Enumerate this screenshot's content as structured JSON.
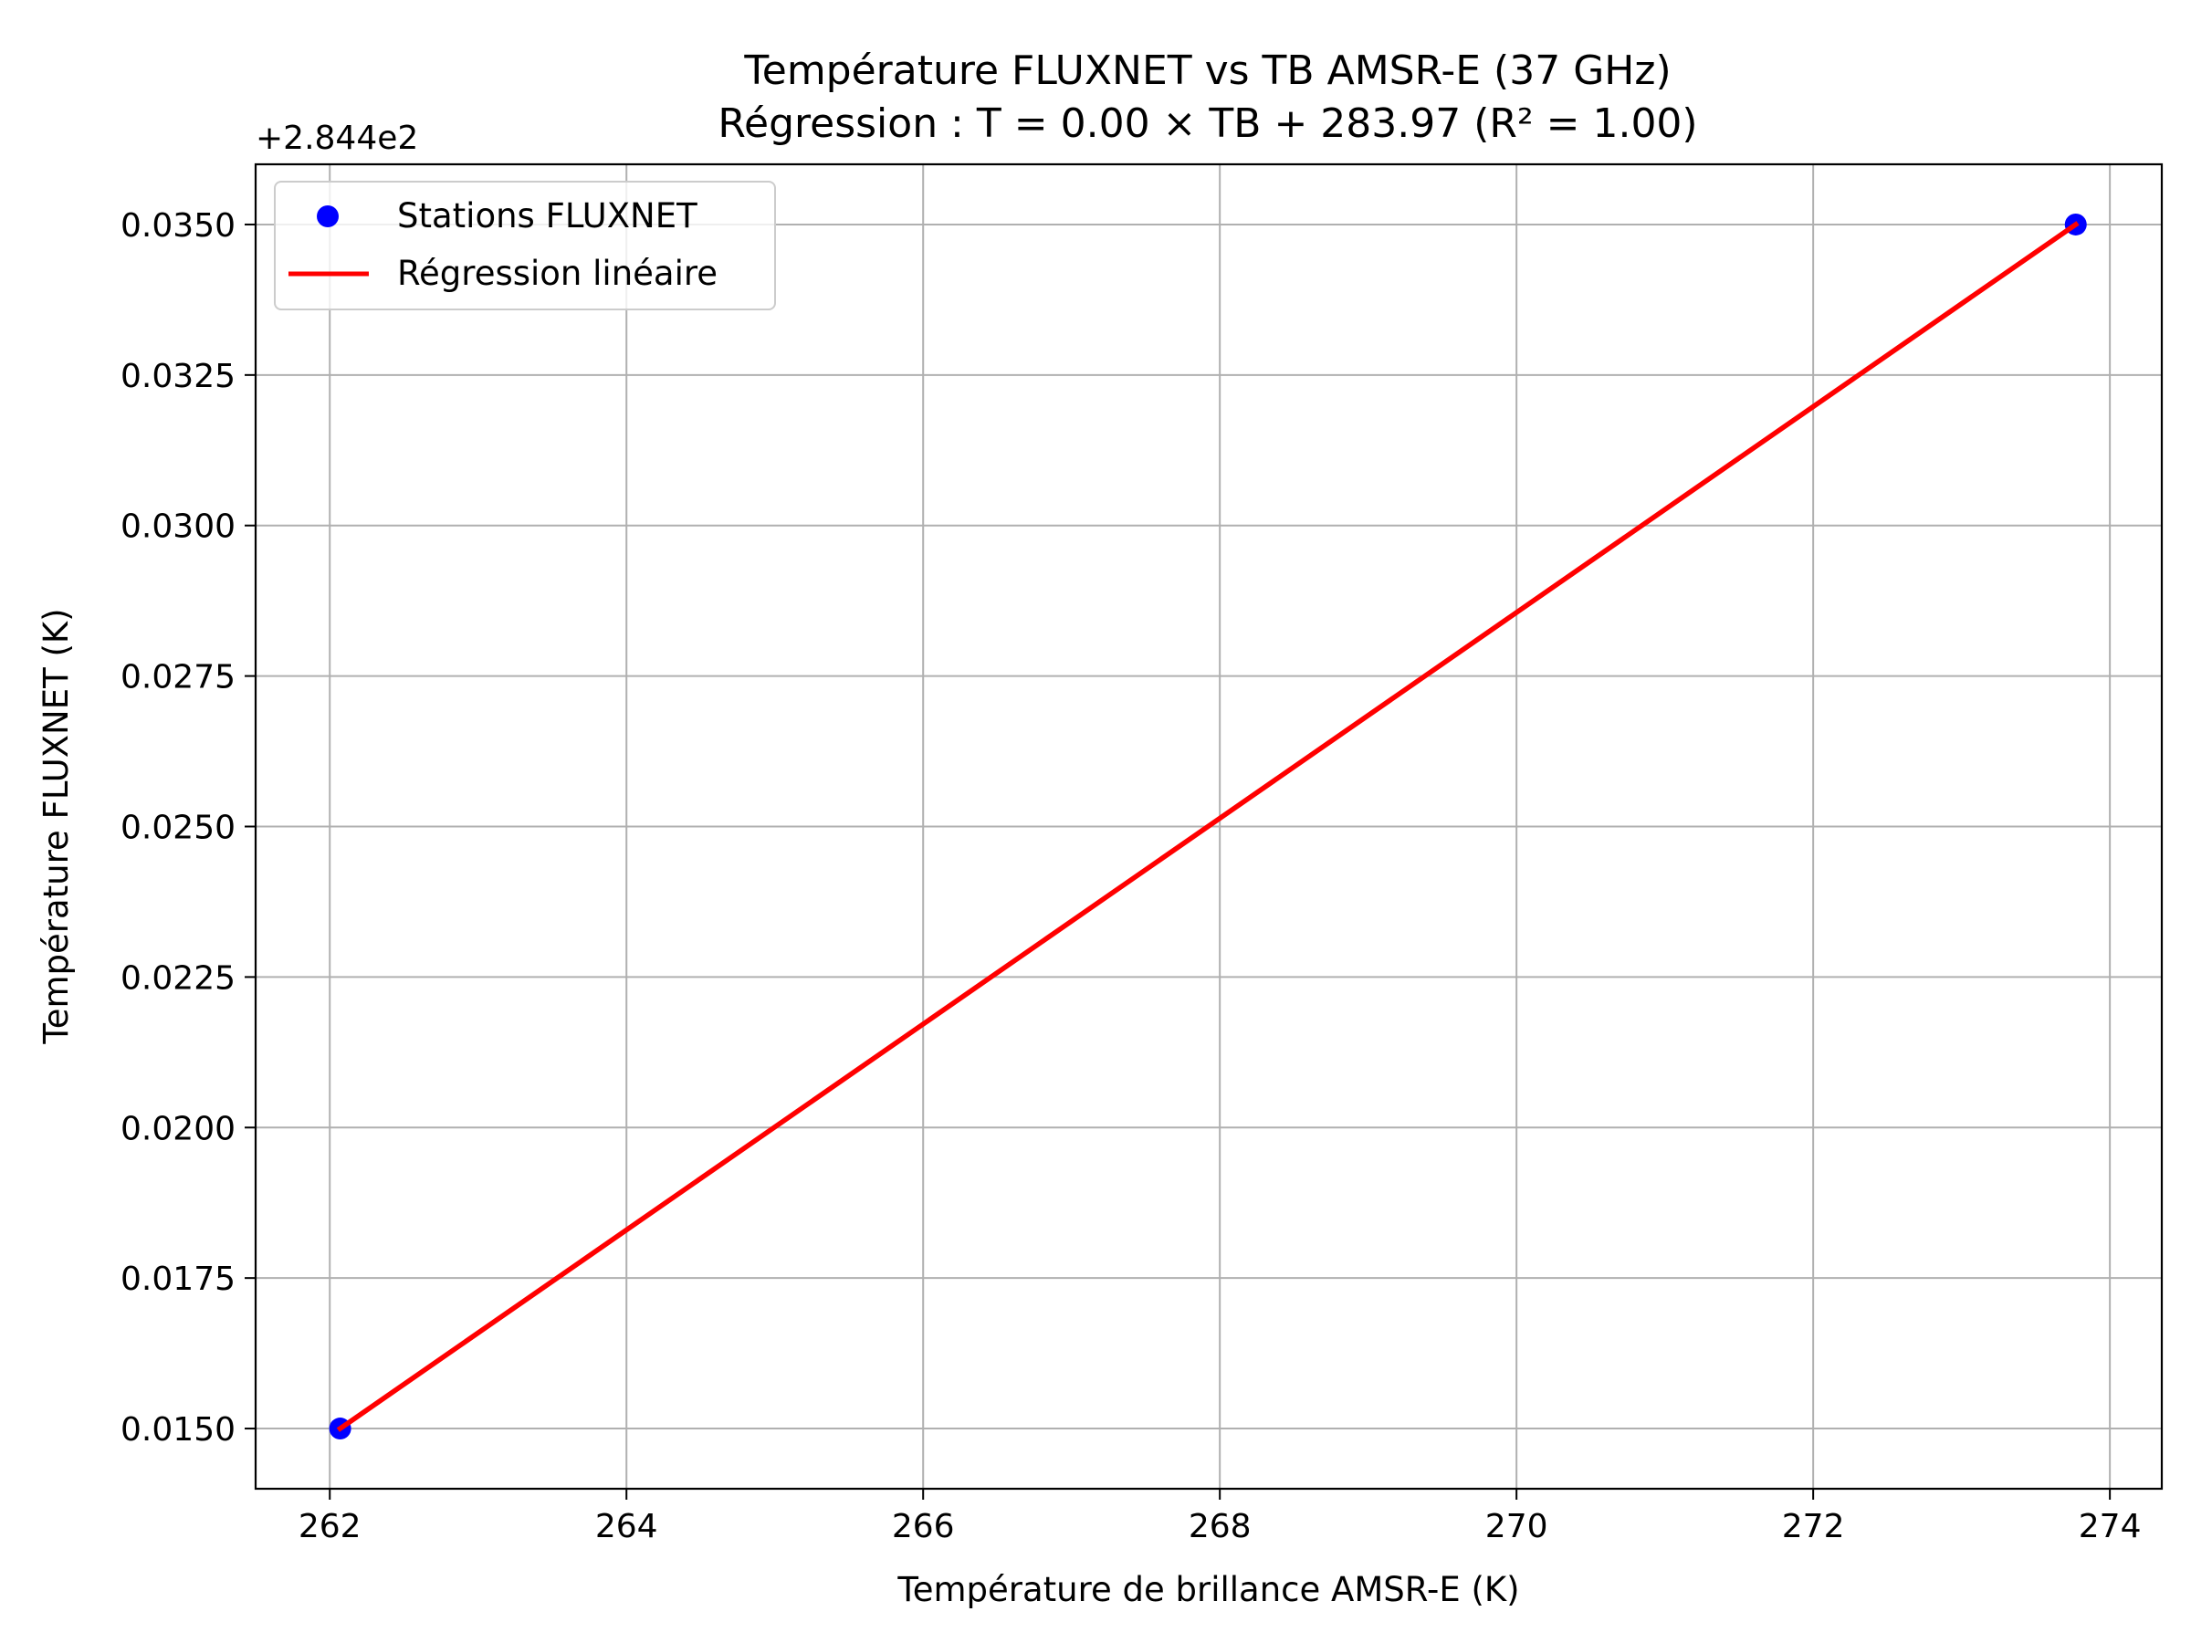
{
  "chart_data": {
    "type": "scatter",
    "title": "Température FLUXNET vs TB AMSR-E (37 GHz)",
    "subtitle": "Régression : T = 0.00 × TB + 283.97 (R² = 1.00)",
    "xlabel": "Température de brillance AMSR-E (K)",
    "ylabel": "Température FLUXNET (K)",
    "y_offset_label": "+2.844e2",
    "xlim": [
      261.5,
      274.35
    ],
    "ylim": [
      0.014,
      0.036
    ],
    "grid": true,
    "x_ticks": [
      262,
      264,
      266,
      268,
      270,
      272,
      274
    ],
    "x_tick_labels": [
      "262",
      "264",
      "266",
      "268",
      "270",
      "272",
      "274"
    ],
    "y_ticks": [
      0.015,
      0.0175,
      0.02,
      0.0225,
      0.025,
      0.0275,
      0.03,
      0.0325,
      0.035
    ],
    "y_tick_labels": [
      "0.0150",
      "0.0175",
      "0.0200",
      "0.0225",
      "0.0250",
      "0.0275",
      "0.0300",
      "0.0325",
      "0.0350"
    ],
    "legend_position": "upper-left",
    "series": [
      {
        "name": "Stations FLUXNET",
        "kind": "scatter",
        "color": "#0000ff",
        "points": [
          {
            "x": 262.07,
            "y": 0.015
          },
          {
            "x": 273.77,
            "y": 0.035
          }
        ]
      },
      {
        "name": "Régression linéaire",
        "kind": "line",
        "color": "#ff0000",
        "points": [
          {
            "x": 262.07,
            "y": 0.015
          },
          {
            "x": 273.77,
            "y": 0.035
          }
        ]
      }
    ]
  }
}
